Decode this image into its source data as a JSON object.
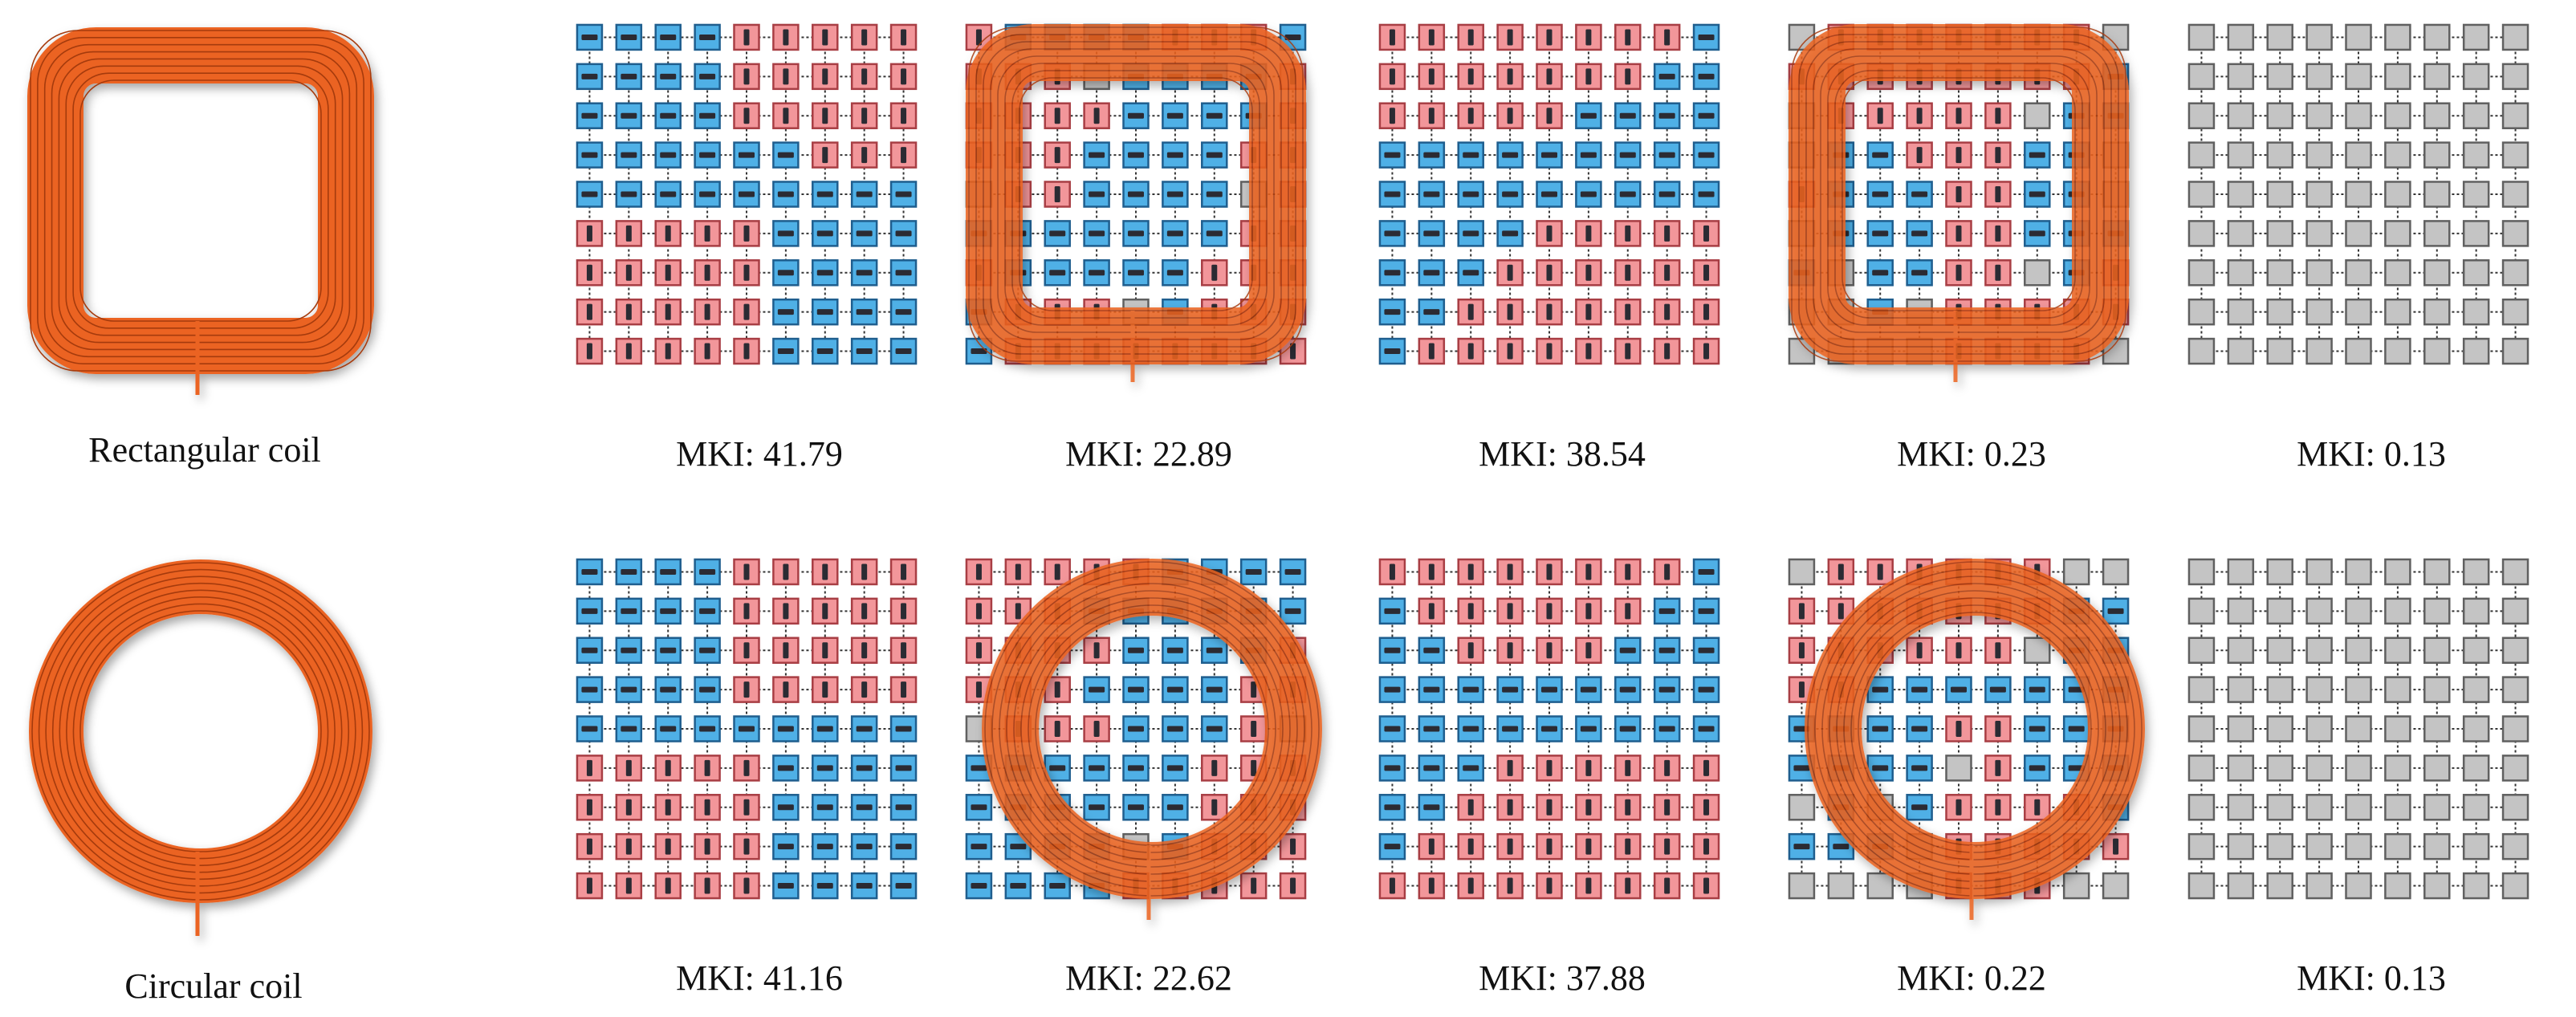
{
  "colors": {
    "pink": "#f2969a",
    "pink_border": "#a83e44",
    "blue": "#4fb0e6",
    "blue_border": "#1f5e8e",
    "gray": "#c4c4c4",
    "gray_border": "#606060",
    "bar": "#2b2b33",
    "wire": "#eb6321",
    "wire_dark": "#a53a0e",
    "grid_line": "#333333",
    "background": "#ffffff"
  },
  "rows": [
    {
      "coil": {
        "shape": "rectangular",
        "label": "Rectangular coil"
      },
      "panels": [
        {
          "mki": "MKI: 41.79",
          "overlay": "none",
          "grid": [
            "BBBBPPPPP",
            "BBBBPPPPP",
            "BBBBPPPPP",
            "BBBBBBPPP",
            "BBBBBBBBB",
            "PPPPPBBBB",
            "PPPPPBBBB",
            "PPPPPBBBB",
            "PPPPPBBBB"
          ]
        },
        {
          "mki": "MKI: 22.89",
          "overlay": "rectangular",
          "grid": [
            "PBBBBPPPB",
            "PPPGBBBBP",
            "PPPPBBBBP",
            "PPPBBBBPP",
            "GPPBBBBGP",
            "BBBBBBBPP",
            "PBBBBBPPP",
            "BPPPGBPPP",
            "BPPPPPPPP"
          ]
        },
        {
          "mki": "MKI: 38.54",
          "overlay": "none",
          "grid": [
            "PPPPPPPPB",
            "PPPPPPPBB",
            "PPPPPBBBB",
            "BBBBBBBBB",
            "BBBBBBBBB",
            "BBBBPPPPP",
            "BBBPPPPPP",
            "BBPPPPPPP",
            "BPPPPPPPP"
          ]
        },
        {
          "mki": "MKI: 0.23",
          "overlay": "rectangular",
          "grid": [
            "GPPPPPPPG",
            "PPPPPPPPB",
            "GPPPPPGBB",
            "GBBPPPBBG",
            "PBBBPPBBG",
            "GBBBPPBBB",
            "BGBBPPGBP",
            "GGBGPPPPP",
            "GGGGPPPPG"
          ]
        },
        {
          "mki": "MKI: 0.13",
          "overlay": "none",
          "grid": [
            "GGGGGGGGG",
            "GGGGGGGGG",
            "GGGGGGGGG",
            "GGGGGGGGG",
            "GGGGGGGGG",
            "GGGGGGGGG",
            "GGGGGGGGG",
            "GGGGGGGGG",
            "GGGGGGGGG"
          ]
        }
      ]
    },
    {
      "coil": {
        "shape": "circular",
        "label": "Circular coil"
      },
      "panels": [
        {
          "mki": "MKI: 41.16",
          "overlay": "none",
          "grid": [
            "BBBBPPPPP",
            "BBBBPPPPP",
            "BBBBPPPPP",
            "BBBBPPPPP",
            "BBBBBBBBB",
            "PPPPPBBBB",
            "PPPPPBBBB",
            "PPPPPBBBB",
            "PPPPPBBBB"
          ]
        },
        {
          "mki": "MKI: 22.62",
          "overlay": "circular",
          "grid": [
            "PPPPPBBBB",
            "PPPBBBBBB",
            "PPPPBBBBP",
            "PPPBBBBPP",
            "GPPPBBBPG",
            "BBBBBBPPP",
            "BBBBBBPPP",
            "BBBBGBPPP",
            "BBBBPPPPP"
          ]
        },
        {
          "mki": "MKI: 37.88",
          "overlay": "none",
          "grid": [
            "PPPPPPPPB",
            "BPPPPPPBB",
            "BBPPPPBBB",
            "BBBBBBBBB",
            "BBBBBBBBB",
            "BBBPPPPPP",
            "BBPPPPPPP",
            "BPPPPPPPP",
            "PPPPPPPPP"
          ]
        },
        {
          "mki": "MKI: 0.22",
          "overlay": "circular",
          "grid": [
            "GPPPPPPGG",
            "PPPPPPPBB",
            "PPPPPPGBB",
            "PPBBBBBBB",
            "BBBBPPBBB",
            "BBBBGPBBB",
            "GBGBPPPPB",
            "BBBGPPPPP",
            "GGGGPPPGG"
          ]
        },
        {
          "mki": "MKI: 0.13",
          "overlay": "none",
          "grid": [
            "GGGGGGGGG",
            "GGGGGGGGG",
            "GGGGGGGGG",
            "GGGGGGGGG",
            "GGGGGGGGG",
            "GGGGGGGGG",
            "GGGGGGGGG",
            "GGGGGGGGG",
            "GGGGGGGGG"
          ]
        }
      ]
    }
  ]
}
